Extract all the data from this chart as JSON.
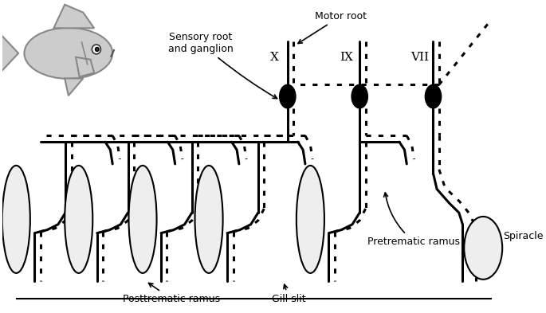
{
  "bg_color": "#ffffff",
  "fill_color": "#eeeeee",
  "lw_thick": 2.2,
  "lw_med": 1.5,
  "labels": {
    "motor_root": "Motor root",
    "sensory_root": "Sensory root\nand ganglion",
    "posttrematic": "Posttrematic ramus",
    "gill_slit": "Gill slit",
    "pretrematic": "Pretrematic ramus",
    "spiracle": "Spiracle",
    "X": "X",
    "IX": "IX",
    "VII": "VII"
  }
}
